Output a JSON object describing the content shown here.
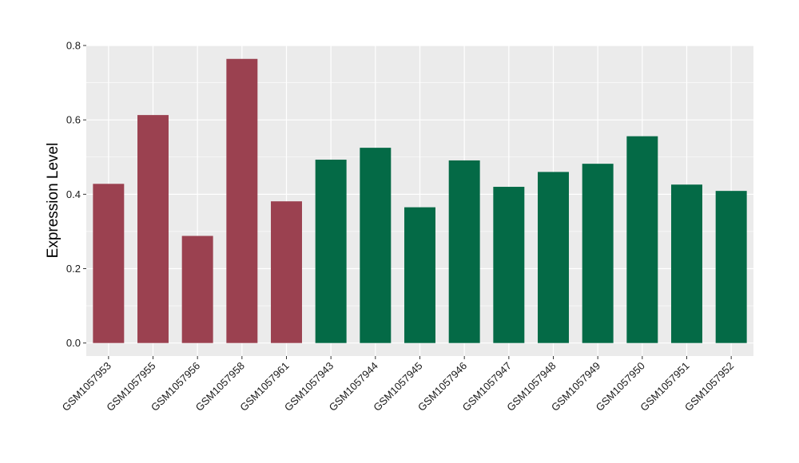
{
  "chart_data": {
    "type": "bar",
    "title": "",
    "xlabel": "",
    "ylabel": "Expression Level",
    "ylim": [
      -0.035,
      0.8
    ],
    "yticks": [
      0.0,
      0.2,
      0.4,
      0.6,
      0.8
    ],
    "ytick_labels": [
      "0.0",
      "0.2",
      "0.4",
      "0.6",
      "0.8"
    ],
    "grid": true,
    "background": "#ebebeb",
    "grid_color": "#ffffff",
    "group_colors": {
      "group1": "#9b4150",
      "group2": "#046a46"
    },
    "categories": [
      "GSM1057953",
      "GSM1057955",
      "GSM1057956",
      "GSM1057958",
      "GSM1057961",
      "GSM1057943",
      "GSM1057944",
      "GSM1057945",
      "GSM1057946",
      "GSM1057947",
      "GSM1057948",
      "GSM1057949",
      "GSM1057950",
      "GSM1057951",
      "GSM1057952"
    ],
    "values": [
      0.428,
      0.613,
      0.288,
      0.764,
      0.381,
      0.493,
      0.525,
      0.365,
      0.491,
      0.42,
      0.46,
      0.482,
      0.556,
      0.426,
      0.409
    ],
    "groups": [
      "group1",
      "group1",
      "group1",
      "group1",
      "group1",
      "group2",
      "group2",
      "group2",
      "group2",
      "group2",
      "group2",
      "group2",
      "group2",
      "group2",
      "group2"
    ]
  }
}
